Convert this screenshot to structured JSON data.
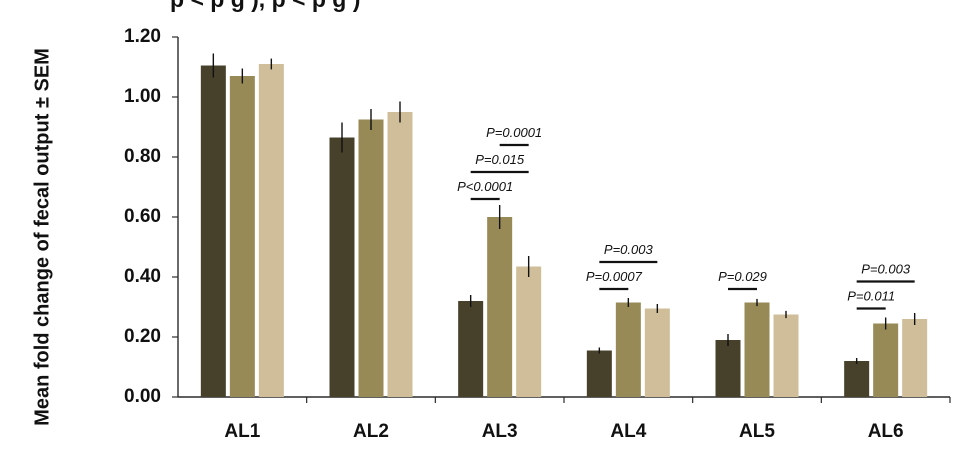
{
  "chart_data": {
    "type": "bar",
    "title": "p < p g   ), p < p g   )",
    "ylabel": "Mean fold change of fecal output ± SEM",
    "ylim": [
      0,
      1.2
    ],
    "yticks": [
      "0.00",
      "0.20",
      "0.40",
      "0.60",
      "0.80",
      "1.00",
      "1.20"
    ],
    "categories": [
      "AL1",
      "AL2",
      "AL3",
      "AL4",
      "AL5",
      "AL6"
    ],
    "colors": [
      "#47402b",
      "#978a57",
      "#cfbe99"
    ],
    "series": [
      {
        "values": [
          1.105,
          0.865,
          0.32,
          0.155,
          0.19,
          0.12
        ],
        "errors": [
          0.04,
          0.05,
          0.02,
          0.01,
          0.02,
          0.01
        ]
      },
      {
        "values": [
          1.07,
          0.925,
          0.6,
          0.315,
          0.315,
          0.245
        ],
        "errors": [
          0.025,
          0.035,
          0.04,
          0.015,
          0.012,
          0.02
        ]
      },
      {
        "values": [
          1.11,
          0.95,
          0.435,
          0.295,
          0.275,
          0.26
        ],
        "errors": [
          0.018,
          0.035,
          0.035,
          0.015,
          0.012,
          0.02
        ]
      }
    ],
    "significance": [
      {
        "category": "AL3",
        "from": 0,
        "to": 1,
        "label": "P<0.0001",
        "y": 0.66
      },
      {
        "category": "AL3",
        "from": 0,
        "to": 2,
        "label": "P=0.015",
        "y": 0.75
      },
      {
        "category": "AL3",
        "from": 1,
        "to": 2,
        "label": "P=0.0001",
        "y": 0.84
      },
      {
        "category": "AL4",
        "from": 0,
        "to": 1,
        "label": "P=0.0007",
        "y": 0.36
      },
      {
        "category": "AL4",
        "from": 0,
        "to": 2,
        "label": "P=0.003",
        "y": 0.45
      },
      {
        "category": "AL5",
        "from": 0,
        "to": 1,
        "label": "P=0.029",
        "y": 0.36
      },
      {
        "category": "AL6",
        "from": 0,
        "to": 1,
        "label": "P=0.011",
        "y": 0.295
      },
      {
        "category": "AL6",
        "from": 0,
        "to": 2,
        "label": "P=0.003",
        "y": 0.385
      }
    ]
  }
}
